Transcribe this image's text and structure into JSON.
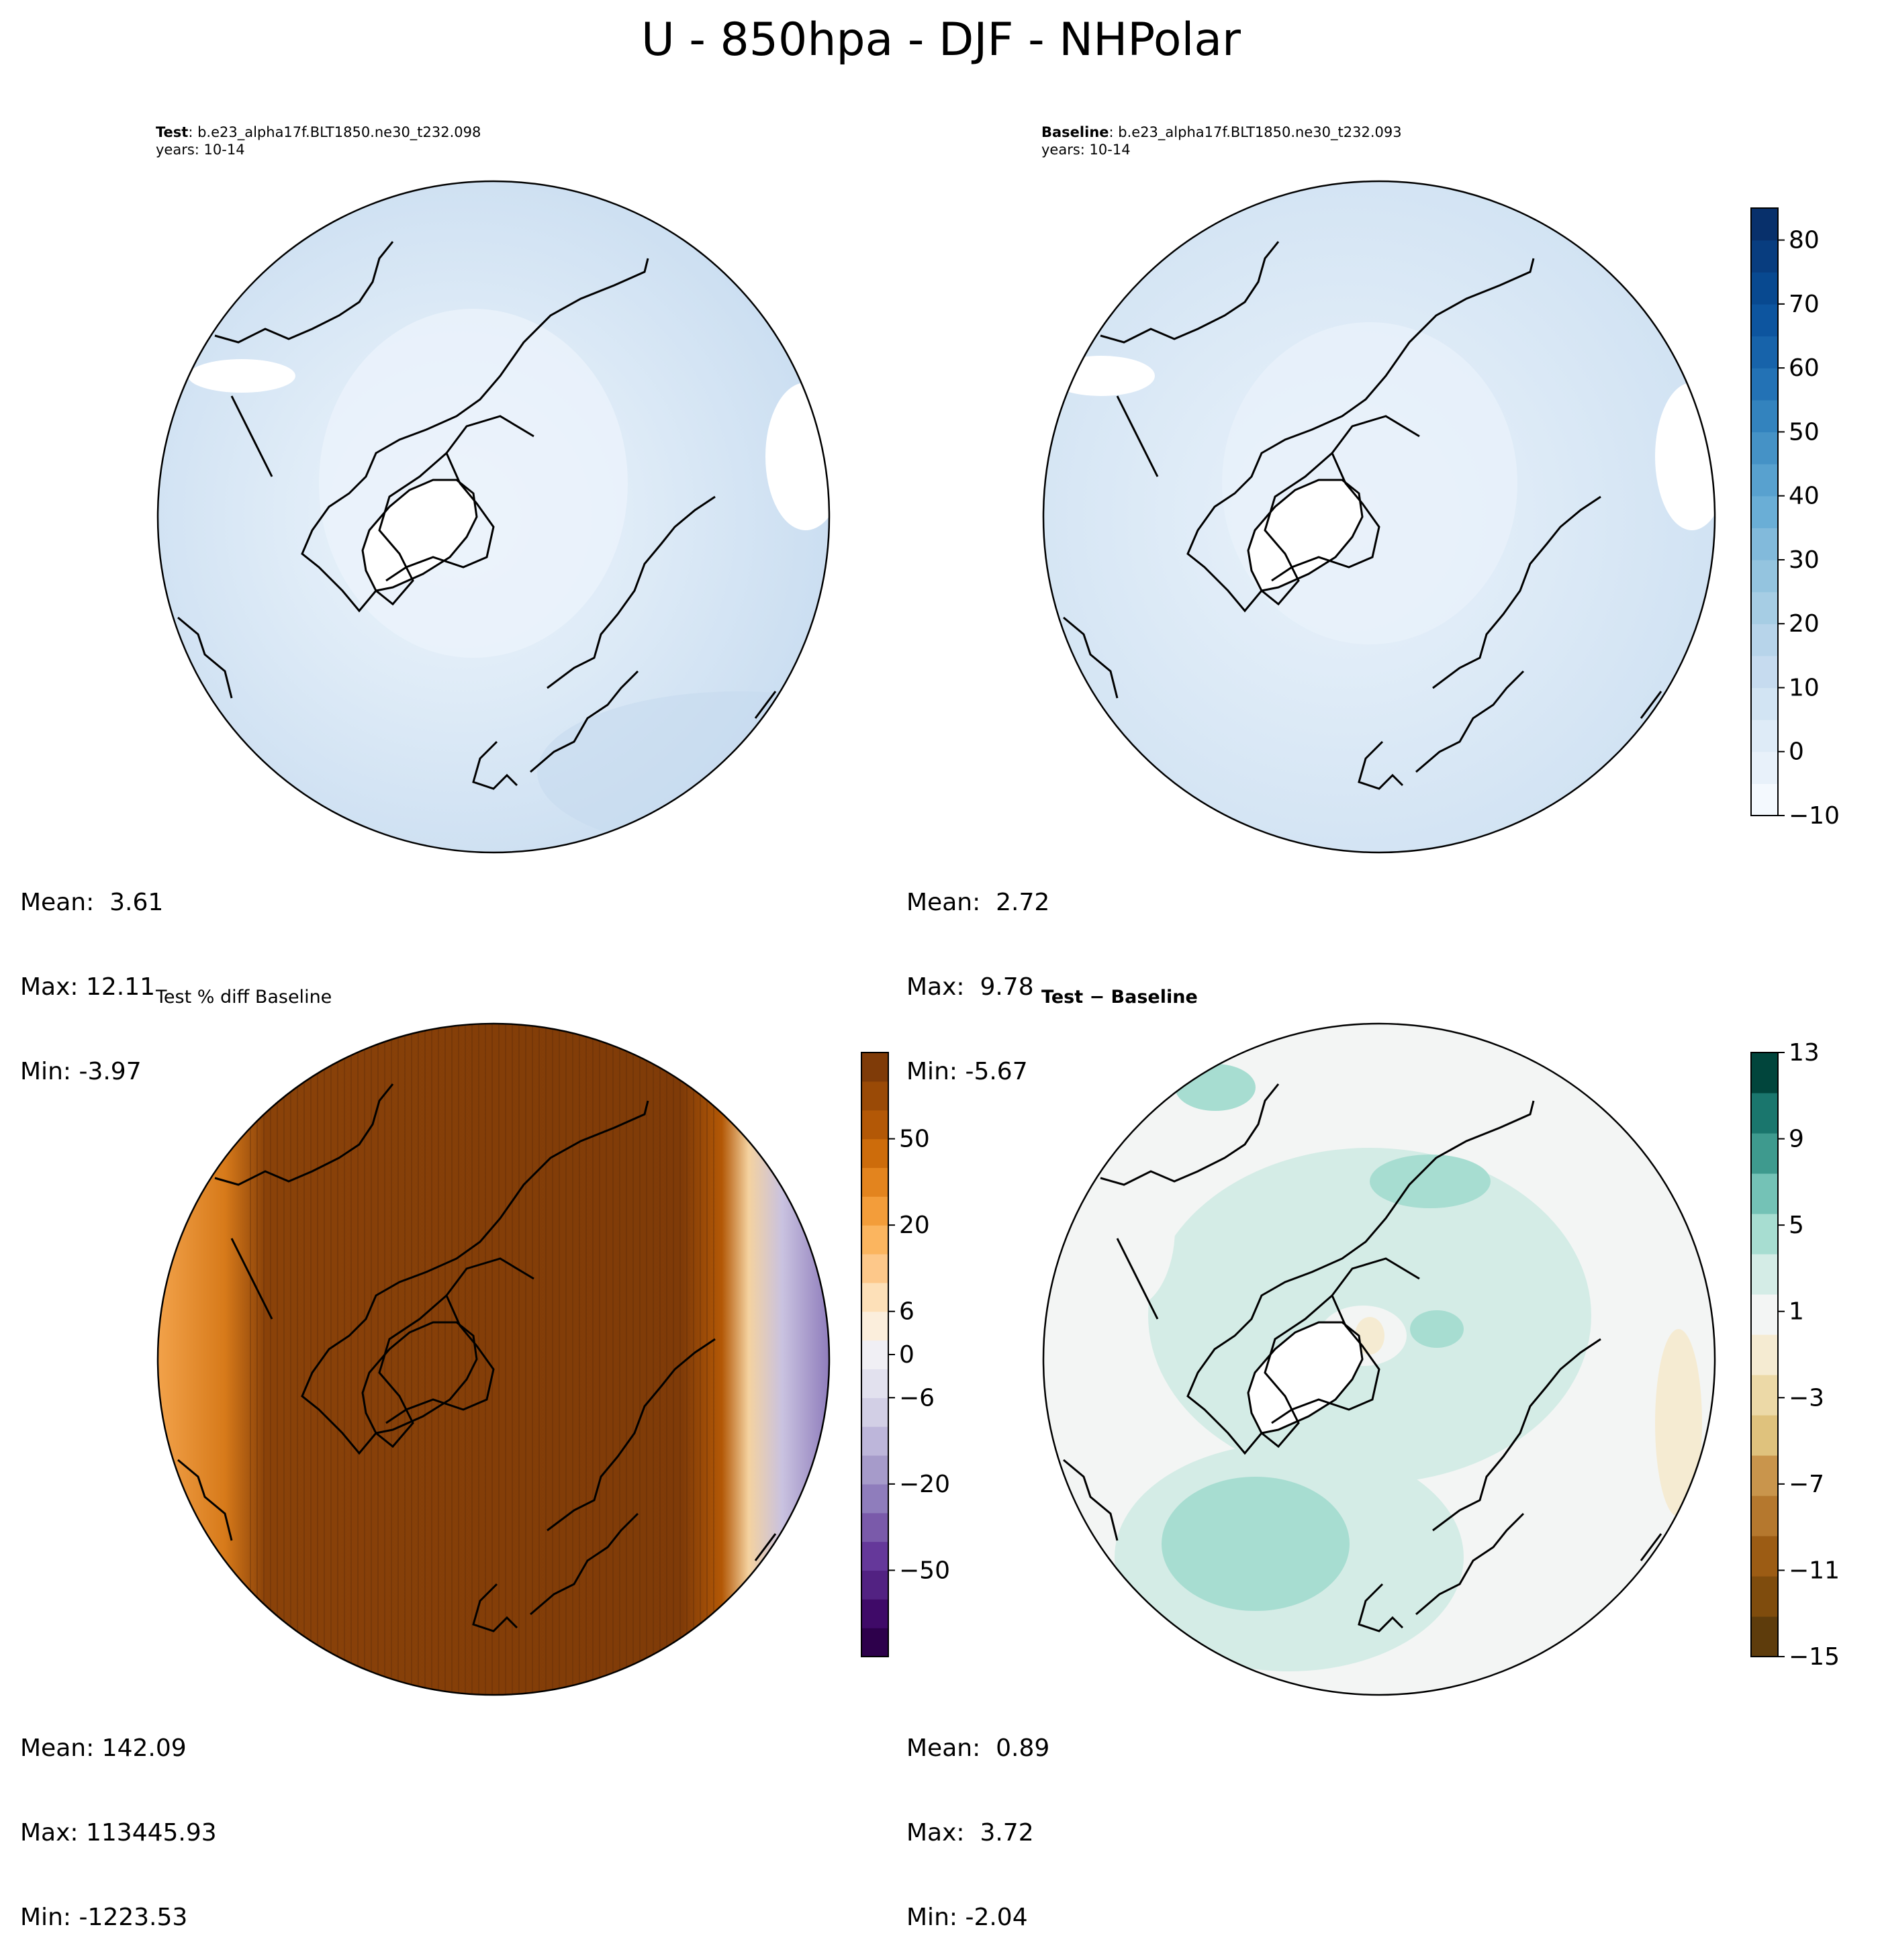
{
  "figure": {
    "title": "U - 850hpa - DJF - NHPolar"
  },
  "panels": {
    "test": {
      "label": "Test",
      "case": ": b.e23_alpha17f.BLT1850.ne30_t232.098",
      "years": "years: 10-14",
      "mean": "Mean:  3.61",
      "max": "Max: 12.11",
      "min": "Min: -3.97"
    },
    "baseline": {
      "label": "Baseline",
      "case": ": b.e23_alpha17f.BLT1850.ne30_t232.093",
      "years": "years: 10-14",
      "mean": "Mean:  2.72",
      "max": "Max:  9.78",
      "min": "Min: -5.67"
    },
    "pctdiff": {
      "title": "Test % diff Baseline",
      "mean": "Mean: 142.09",
      "max": "Max: 113445.93",
      "min": "Min: -1223.53"
    },
    "diff": {
      "title": "Test − Baseline",
      "mean": "Mean:  0.89",
      "max": "Max:  3.72",
      "min": "Min: -2.04"
    }
  },
  "chart_data": [
    {
      "type": "heatmap",
      "projection": "north-polar-stereographic",
      "title": "Test : b.e23_alpha17f.BLT1850.ne30_t232.098",
      "variable": "U",
      "level": "850hpa",
      "season": "DJF",
      "stats": {
        "mean": 3.61,
        "max": 12.11,
        "min": -3.97
      }
    },
    {
      "type": "heatmap",
      "projection": "north-polar-stereographic",
      "title": "Baseline : b.e23_alpha17f.BLT1850.ne30_t232.093",
      "stats": {
        "mean": 2.72,
        "max": 9.78,
        "min": -5.67
      },
      "colorbar": {
        "range": [
          -10,
          85
        ],
        "ticks": [
          -10,
          0,
          10,
          20,
          30,
          40,
          50,
          60,
          70,
          80
        ],
        "tick_labels": [
          "−10",
          "0",
          "10",
          "20",
          "30",
          "40",
          "50",
          "60",
          "70",
          "80"
        ],
        "levels": [
          -10,
          -5,
          0,
          5,
          10,
          15,
          20,
          25,
          30,
          35,
          40,
          45,
          50,
          55,
          60,
          65,
          70,
          75,
          80,
          85
        ],
        "colors": [
          "#f4f9fe",
          "#e8f1fa",
          "#deebf7",
          "#d2e4f3",
          "#c6dbef",
          "#b7d4ea",
          "#a6cde4",
          "#94c4df",
          "#82badb",
          "#6aaed6",
          "#58a1cf",
          "#4592c6",
          "#3383be",
          "#2372b5",
          "#1763aa",
          "#0d559f",
          "#084990",
          "#083d7f",
          "#08306b"
        ]
      }
    },
    {
      "type": "heatmap",
      "projection": "north-polar-stereographic",
      "title": "Test % diff Baseline",
      "stats": {
        "mean": 142.09,
        "max": 113445.93,
        "min": -1223.53
      },
      "colorbar": {
        "range": [
          -100,
          100
        ],
        "ticks": [
          -50,
          -20,
          -6,
          0,
          6,
          20,
          50
        ],
        "tick_labels": [
          "−50",
          "−20",
          "−6",
          "0",
          "6",
          "20",
          "50"
        ],
        "colors": [
          "#2d004b",
          "#3f0a68",
          "#522282",
          "#65389a",
          "#7a5aaa",
          "#8f7dbc",
          "#a69bca",
          "#bdb6da",
          "#d2cfe5",
          "#e2e1ee",
          "#f0eff4",
          "#fbeedc",
          "#fde0b8",
          "#fdc88a",
          "#fbb55f",
          "#f39d3a",
          "#e3841e",
          "#cd6c0b",
          "#b35806",
          "#9a4a06",
          "#7f3b08"
        ]
      }
    },
    {
      "type": "heatmap",
      "projection": "north-polar-stereographic",
      "title": "Test − Baseline",
      "stats": {
        "mean": 0.89,
        "max": 3.72,
        "min": -2.04
      },
      "colorbar": {
        "range": [
          -15,
          13
        ],
        "ticks": [
          -15,
          -11,
          -7,
          -3,
          1,
          5,
          9,
          13
        ],
        "tick_labels": [
          "−15",
          "−11",
          "−7",
          "−3",
          "1",
          "5",
          "9",
          "13"
        ],
        "levels": [
          -15,
          -13,
          -11,
          -9,
          -7,
          -5,
          -3,
          -1,
          1,
          3,
          5,
          7,
          9,
          11,
          13
        ],
        "colors": [
          "#5e3c0c",
          "#7f4c0d",
          "#9c5c14",
          "#b5782e",
          "#c9954c",
          "#dfc27d",
          "#ecd9a7",
          "#f5ebd2",
          "#f3f5f4",
          "#d4ece6",
          "#a7ddd1",
          "#74c2b6",
          "#3e9a8e",
          "#1a766d",
          "#01453c"
        ]
      }
    }
  ]
}
